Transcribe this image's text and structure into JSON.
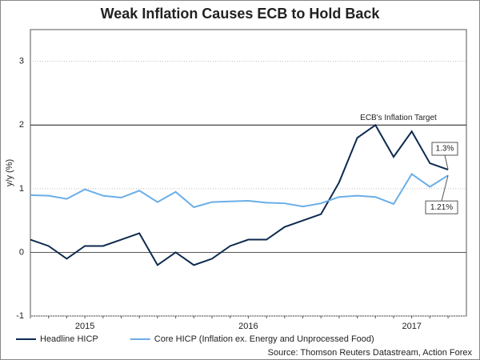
{
  "chart_data": {
    "type": "line",
    "title": "Weak Inflation Causes ECB to Hold Back",
    "y_label": "y/y (%)",
    "source": "Source: Thomson Reuters Datastream, Action Forex",
    "categories": [
      null,
      null,
      null,
      "2015",
      null,
      null,
      null,
      null,
      null,
      null,
      null,
      null,
      "2016",
      null,
      null,
      null,
      null,
      null,
      null,
      null,
      null,
      "2017",
      null,
      null
    ],
    "series": [
      {
        "name": "Headline HICP",
        "color": "#0d2a4f",
        "values": [
          0.2,
          0.1,
          -0.1,
          0.1,
          0.1,
          0.2,
          0.3,
          -0.2,
          0,
          -0.2,
          -0.1,
          0.1,
          0.2,
          0.2,
          0.4,
          0.5,
          0.6,
          1.1,
          1.8,
          2.0,
          1.5,
          1.9,
          1.4,
          1.3
        ],
        "value_labels": [
          null,
          null,
          null,
          null,
          null,
          null,
          null,
          null,
          null,
          null,
          null,
          null,
          null,
          null,
          null,
          null,
          null,
          null,
          null,
          null,
          null,
          null,
          null,
          "1.3%"
        ]
      },
      {
        "name": "Core HICP (Inflation ex. Energy and Unprocessed Food)",
        "color": "#6aaee8",
        "values": [
          0.9,
          0.89,
          0.84,
          0.99,
          0.89,
          0.86,
          0.97,
          0.79,
          0.95,
          0.71,
          0.79,
          0.8,
          0.81,
          0.78,
          0.77,
          0.72,
          0.77,
          0.87,
          0.89,
          0.87,
          0.76,
          1.23,
          1.03,
          1.21
        ],
        "value_labels": [
          null,
          null,
          null,
          null,
          null,
          null,
          null,
          null,
          null,
          null,
          null,
          null,
          null,
          null,
          null,
          null,
          null,
          null,
          null,
          null,
          null,
          null,
          null,
          "1.21%"
        ]
      }
    ],
    "reference_line": {
      "value": 2,
      "label": "ECB's Inflation Target"
    },
    "ylim": [
      -1,
      3.5
    ],
    "yticks": [
      -1,
      0,
      1,
      2,
      3
    ],
    "grid": true
  }
}
